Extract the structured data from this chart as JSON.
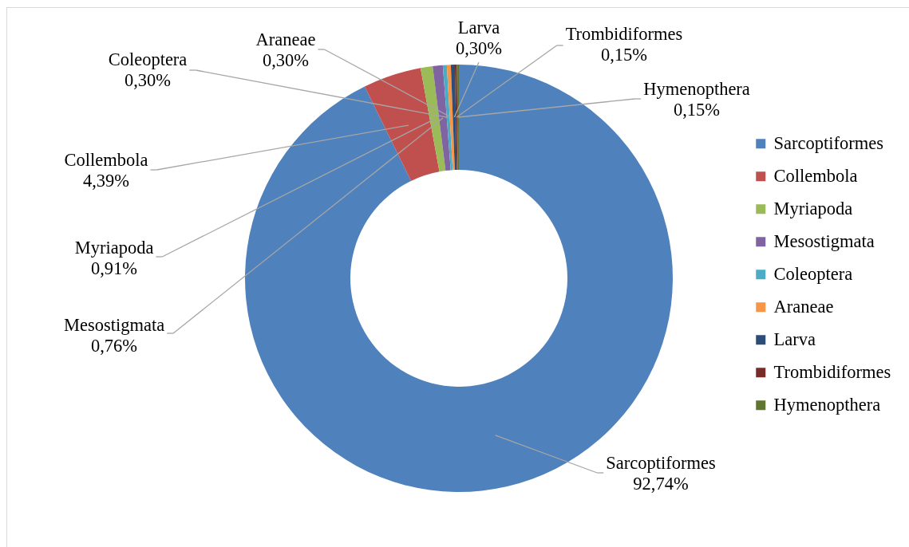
{
  "chart_data": {
    "type": "donut",
    "categories": [
      "Sarcoptiformes",
      "Collembola",
      "Myriapoda",
      "Mesostigmata",
      "Coleoptera",
      "Araneae",
      "Larva",
      "Trombidiformes",
      "Hymenopthera"
    ],
    "values": [
      92.74,
      4.39,
      0.91,
      0.76,
      0.3,
      0.3,
      0.3,
      0.15,
      0.15
    ],
    "colors": [
      "#4f81bd",
      "#c0504d",
      "#9bbb59",
      "#8064a2",
      "#4bacc6",
      "#f79646",
      "#2c4d75",
      "#772c2a",
      "#5f7530"
    ],
    "value_labels": [
      "92,74%",
      "4,39%",
      "0,91%",
      "0,76%",
      "0,30%",
      "0,30%",
      "0,30%",
      "0,15%",
      "0,15%"
    ],
    "legend": "right"
  }
}
